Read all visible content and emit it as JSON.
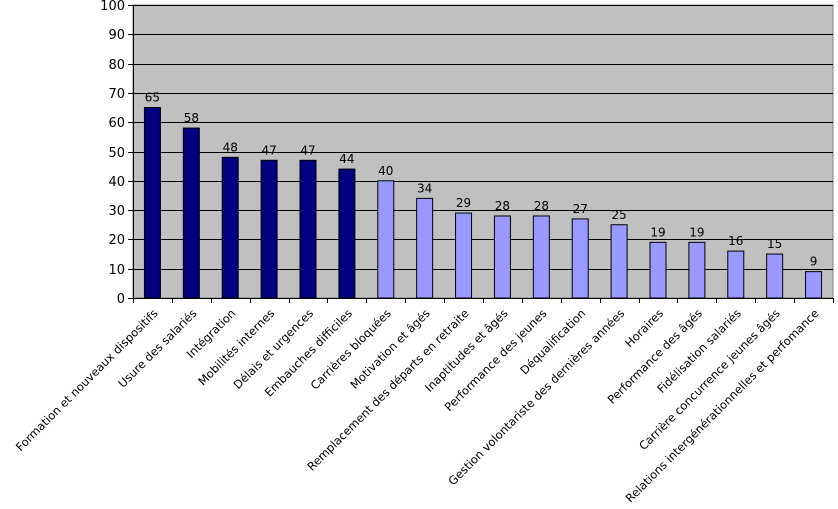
{
  "chart_data": {
    "type": "bar",
    "title": "",
    "xlabel": "",
    "ylabel": "",
    "ylim": [
      0,
      100
    ],
    "yticks": [
      0,
      10,
      20,
      30,
      40,
      50,
      60,
      70,
      80,
      90,
      100
    ],
    "grid": true,
    "legend": "none",
    "plot_background": "#c0c0c0",
    "colors": {
      "dark": "#000080",
      "light": "#9999ff",
      "grid": "#000000"
    },
    "categories": [
      "Formation et nouveaux dispositifs",
      "Usure des salariés",
      "Intégration",
      "Mobilités internes",
      "Délais et urgences",
      "Embauches difficiles",
      "Carrières bloquées",
      "Motivation et âgés",
      "Remplacement des départs en retraite",
      "Inaptitudes et âgés",
      "Performance des jeunes",
      "Déqualification",
      "Gestion volontariste des dernières années",
      "Horaires",
      "Performance des âgés",
      "Fidélisation salariés",
      "Carrière concurrence jeunes âgés",
      "Relations intergénérationnelles et perfomance"
    ],
    "values": [
      65,
      58,
      48,
      47,
      47,
      44,
      40,
      34,
      29,
      28,
      28,
      27,
      25,
      19,
      19,
      16,
      15,
      9
    ],
    "bar_color_keys": [
      "dark",
      "dark",
      "dark",
      "dark",
      "dark",
      "dark",
      "light",
      "light",
      "light",
      "light",
      "light",
      "light",
      "light",
      "light",
      "light",
      "light",
      "light",
      "light"
    ]
  }
}
